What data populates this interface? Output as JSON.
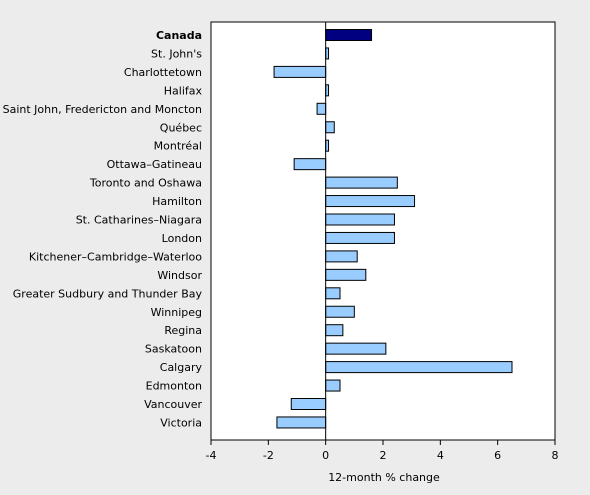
{
  "chart_data": {
    "type": "bar",
    "orientation": "horizontal",
    "title": "",
    "xlabel": "12-month % change",
    "ylabel": "",
    "xlim": [
      -4,
      8
    ],
    "xticks": [
      -4,
      -2,
      0,
      2,
      4,
      6,
      8
    ],
    "grid": false,
    "categories": [
      "Canada",
      "St. John's",
      "Charlottetown",
      "Halifax",
      "Saint John, Fredericton and Moncton",
      "Québec",
      "Montréal",
      "Ottawa–Gatineau",
      "Toronto and Oshawa",
      "Hamilton",
      "St. Catharines–Niagara",
      "London",
      "Kitchener–Cambridge–Waterloo",
      "Windsor",
      "Greater Sudbury and Thunder Bay",
      "Winnipeg",
      "Regina",
      "Saskatoon",
      "Calgary",
      "Edmonton",
      "Vancouver",
      "Victoria"
    ],
    "values": [
      1.6,
      0.1,
      -1.8,
      0.1,
      -0.3,
      0.3,
      0.1,
      -1.1,
      2.5,
      3.1,
      2.4,
      2.4,
      1.1,
      1.4,
      0.5,
      1.0,
      0.6,
      2.1,
      6.5,
      0.5,
      -1.2,
      -1.7
    ],
    "highlight_category": "Canada",
    "colors": {
      "highlight": "#000080",
      "bar": "#99ccff",
      "bar_stroke": "#000000",
      "plot_background": "#ffffff",
      "page_background": "#ececec"
    }
  }
}
